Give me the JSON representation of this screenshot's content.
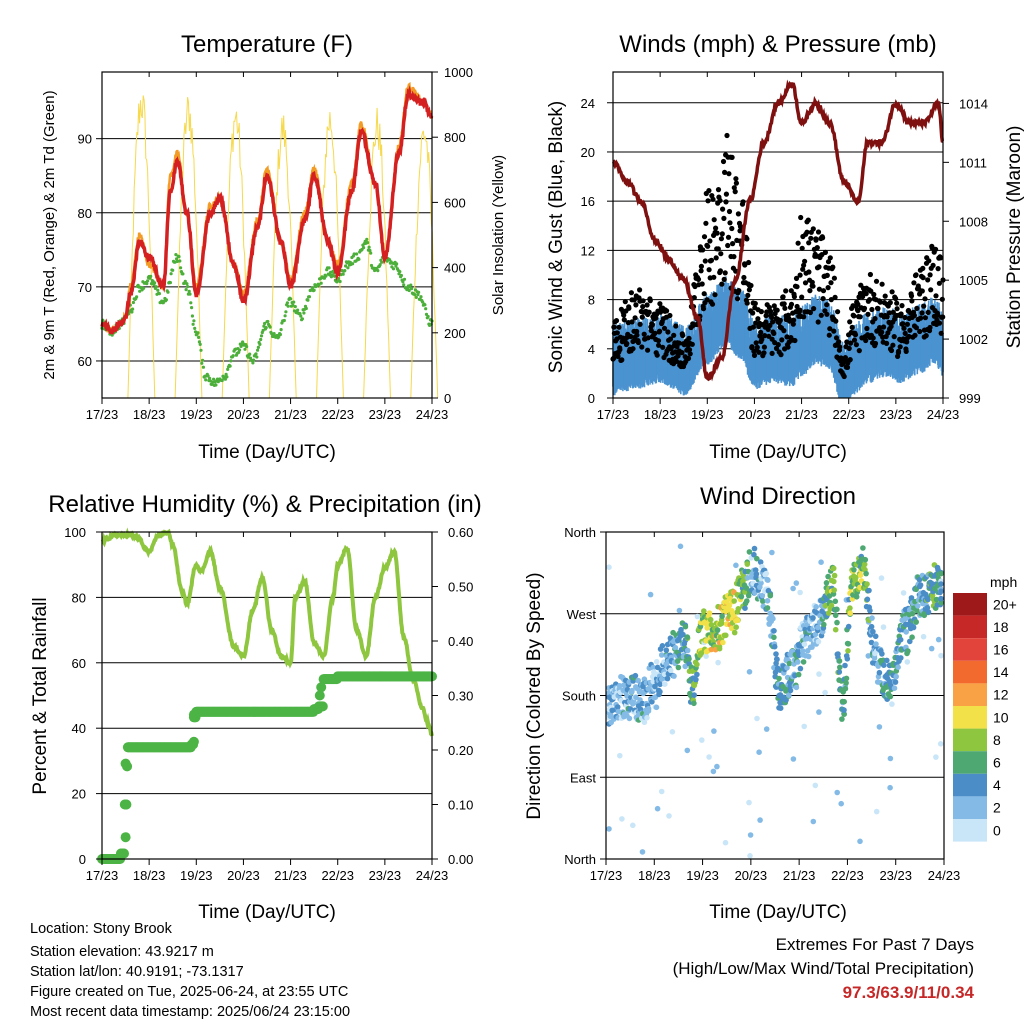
{
  "chart_data": [
    {
      "type": "line",
      "title": "Temperature (F)",
      "xlabel": "Time (Day/UTC)",
      "ylabel": "2m & 9m T (Red, Orange) & 2m Td (Green)",
      "ylabel_right": "Solar Insolation (Yellow)",
      "x_ticks": [
        "17/23",
        "18/23",
        "19/23",
        "20/23",
        "21/23",
        "22/23",
        "23/23",
        "24/23"
      ],
      "y_ticks": [
        "60",
        "70",
        "80",
        "90"
      ],
      "y2_ticks": [
        "0",
        "200",
        "400",
        "600",
        "800",
        "1000"
      ],
      "ylim": [
        55,
        99
      ],
      "y2lim": [
        0,
        1000
      ],
      "grid": true,
      "series": [
        {
          "color": "#d42020",
          "x": [
            0,
            0.2,
            0.4,
            0.5,
            0.6,
            0.8,
            1.0,
            1.3,
            1.45,
            1.6,
            1.8,
            2.0,
            2.3,
            2.5,
            2.8,
            3.0,
            3.3,
            3.5,
            3.8,
            4.0,
            4.3,
            4.5,
            4.8,
            5.0,
            5.3,
            5.5,
            5.8,
            6.0,
            6.3,
            6.5,
            6.8,
            7.0
          ],
          "y": [
            65,
            64,
            65,
            66,
            69,
            76,
            74,
            70,
            83,
            87,
            80,
            69,
            80,
            82,
            73,
            68,
            78,
            85,
            76,
            70,
            79,
            85,
            76,
            72,
            83,
            91,
            84,
            74,
            88,
            96,
            95,
            93
          ]
        },
        {
          "color": "#f39c25",
          "x": [
            0,
            0.2,
            0.4,
            0.5,
            0.6,
            0.8,
            1.0,
            1.3,
            1.45,
            1.6,
            1.8,
            2.0,
            2.3,
            2.5,
            2.8,
            3.0,
            3.3,
            3.5,
            3.8,
            4.0,
            4.3,
            4.5,
            4.8,
            5.0,
            5.3,
            5.5,
            5.8,
            6.0,
            6.3,
            6.5,
            6.8,
            7.0
          ],
          "y": [
            65,
            64,
            65,
            66,
            70,
            77,
            73,
            70,
            85,
            88,
            80,
            70,
            81,
            82,
            73,
            69,
            79,
            86,
            76,
            71,
            80,
            86,
            76,
            73,
            84,
            92,
            84,
            74,
            89,
            97,
            95,
            93
          ]
        },
        {
          "color": "#4caf3a",
          "x": [
            0,
            0.2,
            0.4,
            0.6,
            0.8,
            1.0,
            1.3,
            1.6,
            1.8,
            2.0,
            2.2,
            2.4,
            2.6,
            2.8,
            3.0,
            3.2,
            3.5,
            3.7,
            4.0,
            4.2,
            4.5,
            4.8,
            5.0,
            5.2,
            5.4,
            5.6,
            5.8,
            6.0,
            6.2,
            6.5,
            6.7,
            7.0
          ],
          "y": [
            65,
            64,
            65,
            67,
            70,
            71,
            68,
            74,
            70,
            64,
            58,
            57,
            58,
            61,
            62,
            60,
            65,
            63,
            68,
            66,
            70,
            72,
            71,
            73,
            74,
            76,
            72,
            74,
            73,
            70,
            69,
            65
          ]
        }
      ]
    },
    {
      "type": "scatter",
      "title": "Winds (mph) & Pressure (mb)",
      "xlabel": "Time (Day/UTC)",
      "ylabel": "Sonic Wind & Gust (Blue, Black)",
      "ylabel_right": "Station Pressure (Maroon)",
      "x_ticks": [
        "17/23",
        "18/23",
        "19/23",
        "20/23",
        "21/23",
        "22/23",
        "23/23",
        "24/23"
      ],
      "y_ticks": [
        "0",
        "4",
        "8",
        "12",
        "16",
        "20",
        "24"
      ],
      "y2_ticks": [
        "999",
        "1002",
        "1005",
        "1008",
        "1011",
        "1014"
      ],
      "ylim": [
        0,
        26.5
      ],
      "y2lim": [
        999,
        1015.6
      ],
      "grid": true,
      "series": [
        {
          "color": "#7f1010",
          "type": "line",
          "x": [
            0,
            0.3,
            0.6,
            0.9,
            1.2,
            1.5,
            1.8,
            2.0,
            2.3,
            2.6,
            2.9,
            3.2,
            3.5,
            3.8,
            4.0,
            4.3,
            4.6,
            4.9,
            5.2,
            5.4,
            5.7,
            6.0,
            6.3,
            6.6,
            6.9,
            7.0
          ],
          "y": [
            1011,
            1010,
            1009,
            1007,
            1006,
            1005,
            1003,
            1000,
            1001,
            1005,
            1009,
            1012,
            1014,
            1015,
            1013,
            1014,
            1013,
            1010,
            1009,
            1012,
            1012,
            1014,
            1013,
            1013,
            1014,
            1012
          ]
        }
      ]
    },
    {
      "type": "line",
      "title": "Relative Humidity (%) & Precipitation (in)",
      "xlabel": "Time (Day/UTC)",
      "ylabel": "Percent & Total Rainfall",
      "x_ticks": [
        "17/23",
        "18/23",
        "19/23",
        "20/23",
        "21/23",
        "22/23",
        "23/23",
        "24/23"
      ],
      "y_ticks": [
        "0",
        "20",
        "40",
        "60",
        "80",
        "100"
      ],
      "y2_ticks": [
        "0.00",
        "0.10",
        "0.20",
        "0.30",
        "0.40",
        "0.50",
        "0.60"
      ],
      "ylim": [
        0,
        100
      ],
      "y2lim": [
        0,
        0.6
      ],
      "grid": true,
      "series": [
        {
          "color": "#8ec63f",
          "x": [
            0,
            0.1,
            0.3,
            0.5,
            0.6,
            0.8,
            0.9,
            1.0,
            1.2,
            1.4,
            1.5,
            1.7,
            1.8,
            2.0,
            2.1,
            2.3,
            2.5,
            2.8,
            3.0,
            3.2,
            3.4,
            3.6,
            3.8,
            4.0,
            4.1,
            4.3,
            4.5,
            4.7,
            4.9,
            5.0,
            5.2,
            5.4,
            5.6,
            5.8,
            6.0,
            6.2,
            6.4,
            6.6,
            6.8,
            6.9,
            7.0
          ],
          "y": [
            97,
            98,
            99,
            99,
            99,
            98,
            95,
            94,
            99,
            100,
            96,
            82,
            78,
            90,
            88,
            94,
            83,
            65,
            62,
            76,
            86,
            70,
            62,
            60,
            80,
            85,
            66,
            62,
            80,
            90,
            95,
            70,
            62,
            80,
            89,
            94,
            68,
            55,
            46,
            42,
            38
          ]
        },
        {
          "color": "#4cb445",
          "x": [
            0,
            0.4,
            0.48,
            0.52,
            0.55,
            1.0,
            1.9,
            1.95,
            2.0,
            4.5,
            4.6,
            4.7,
            5.0,
            6.0,
            7.0
          ],
          "y": [
            0,
            0.01,
            0.1,
            0.17,
            0.205,
            0.205,
            0.21,
            0.26,
            0.27,
            0.275,
            0.28,
            0.33,
            0.335,
            0.335,
            0.335
          ]
        }
      ]
    },
    {
      "type": "scatter",
      "title": "Wind Direction",
      "xlabel": "Time (Day/UTC)",
      "ylabel": "Direction (Colored By Speed)",
      "x_ticks": [
        "17/23",
        "18/23",
        "19/23",
        "20/23",
        "21/23",
        "22/23",
        "23/23",
        "24/23"
      ],
      "y_ticks": [
        "North",
        "East",
        "South",
        "West",
        "North"
      ],
      "ylim": [
        0,
        360
      ],
      "grid": true,
      "legend_title": "mph",
      "legend_labels": [
        "20+",
        "18",
        "16",
        "14",
        "12",
        "10",
        "8",
        "6",
        "4",
        "2",
        "0"
      ],
      "legend_colors": [
        "#9e1a1a",
        "#c62828",
        "#e2433a",
        "#f26a2e",
        "#f9a245",
        "#f3e14a",
        "#8ec63f",
        "#4ea872",
        "#4a8dc7",
        "#84bbe6",
        "#c9e6f8"
      ],
      "series": []
    }
  ],
  "footer": {
    "location": "Location: Stony Brook",
    "elevation": "Station elevation: 43.9217 m",
    "latlon": "Station lat/lon: 40.9191; -73.1317",
    "created": "Figure created on Tue, 2025-06-24, at 23:55 UTC",
    "recent": "Most recent data timestamp: 2025/06/24 23:15:00"
  },
  "extremes": {
    "heading": "Extremes For Past 7 Days",
    "subheading": "(High/Low/Max Wind/Total Precipitation)",
    "values": "97.3/63.9/11/0.34"
  },
  "colors": {
    "temp_red": "#d42020",
    "temp_orange": "#f39c25",
    "dewpoint_green": "#4caf3a",
    "solar_yellow": "#f6d94c",
    "gust_black": "#000000",
    "wind_blue": "#4a93d0",
    "pressure_maroon": "#7f1010",
    "rh_green": "#8ec63f",
    "precip_green": "#4cb445",
    "extremes_red": "#c62828"
  }
}
